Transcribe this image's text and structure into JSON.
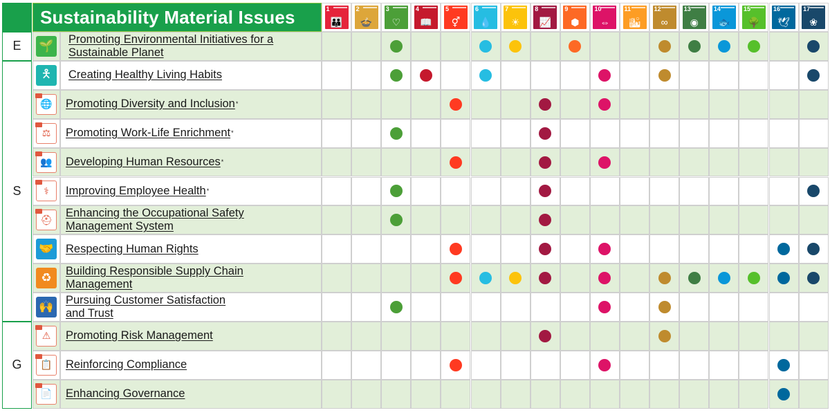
{
  "title": "Sustainability Material Issues",
  "sdgs": [
    {
      "num": "1",
      "icon": "family-icon",
      "glyph": "👪",
      "color": "#e5243b"
    },
    {
      "num": "2",
      "icon": "bowl-icon",
      "glyph": "🍲",
      "color": "#dda63a"
    },
    {
      "num": "3",
      "icon": "heartbeat-icon",
      "glyph": "♡",
      "color": "#4c9f38"
    },
    {
      "num": "4",
      "icon": "book-icon",
      "glyph": "📖",
      "color": "#c5192d"
    },
    {
      "num": "5",
      "icon": "gender-icon",
      "glyph": "⚥",
      "color": "#ff3a21"
    },
    {
      "num": "6",
      "icon": "water-drop-icon",
      "glyph": "💧",
      "color": "#26bde2"
    },
    {
      "num": "7",
      "icon": "sun-power-icon",
      "glyph": "☀",
      "color": "#fcc30b"
    },
    {
      "num": "8",
      "icon": "growth-chart-icon",
      "glyph": "📈",
      "color": "#a21942"
    },
    {
      "num": "9",
      "icon": "cubes-icon",
      "glyph": "⬢",
      "color": "#fd6925"
    },
    {
      "num": "10",
      "icon": "equality-icon",
      "glyph": "⇔",
      "color": "#dd1367"
    },
    {
      "num": "11",
      "icon": "city-icon",
      "glyph": "🏙",
      "color": "#fd9d24"
    },
    {
      "num": "12",
      "icon": "infinity-icon",
      "glyph": "∞",
      "color": "#bf8b2e"
    },
    {
      "num": "13",
      "icon": "eye-globe-icon",
      "glyph": "◉",
      "color": "#3f7e44"
    },
    {
      "num": "14",
      "icon": "fish-icon",
      "glyph": "🐟",
      "color": "#0a97d9"
    },
    {
      "num": "15",
      "icon": "tree-icon",
      "glyph": "🌳",
      "color": "#56c02b"
    },
    {
      "num": "16",
      "icon": "dove-icon",
      "glyph": "🕊",
      "color": "#00689d"
    },
    {
      "num": "17",
      "icon": "partnership-icon",
      "glyph": "❀",
      "color": "#19486a"
    }
  ],
  "groups": [
    {
      "letter": "E",
      "rows": 1
    },
    {
      "letter": "S",
      "rows": 9
    },
    {
      "letter": "G",
      "rows": 3
    }
  ],
  "rows": [
    {
      "label": "Promoting Environmental Initiatives for a Sustainable Planet",
      "lines": [
        "Promoting Environmental Initiatives for a",
        "Sustainable Planet"
      ],
      "asterisk": "",
      "icon": "seedling-icon",
      "icon_style": "solid",
      "icon_color": "#3cb44b",
      "glyph": "🌱",
      "shaded": true,
      "dots": [
        3,
        6,
        7,
        9,
        12,
        13,
        14,
        15,
        17
      ]
    },
    {
      "label": "Creating Healthy Living Habits",
      "lines": [
        "Creating Healthy Living Habits"
      ],
      "asterisk": "",
      "icon": "person-health-icon",
      "icon_style": "solid",
      "icon_color": "#1fb5b0",
      "glyph": "🯅",
      "shaded": false,
      "dots": [
        3,
        4,
        6,
        10,
        12,
        17
      ]
    },
    {
      "label": "Promoting Diversity and Inclusion",
      "lines": [
        "Promoting Diversity and Inclusion"
      ],
      "asterisk": "*",
      "icon": "globe-people-icon",
      "icon_style": "outline",
      "glyph": "🌐",
      "shaded": true,
      "dots": [
        5,
        8,
        10
      ]
    },
    {
      "label": "Promoting Work-Life Enrichment",
      "lines": [
        "Promoting Work-Life Enrichment"
      ],
      "asterisk": "*",
      "icon": "balance-scale-icon",
      "icon_style": "outline",
      "glyph": "⚖",
      "shaded": false,
      "dots": [
        3,
        8
      ]
    },
    {
      "label": "Developing Human Resources",
      "lines": [
        "Developing Human Resources"
      ],
      "asterisk": "*",
      "icon": "training-board-icon",
      "icon_style": "outline",
      "glyph": "👥",
      "shaded": true,
      "dots": [
        5,
        8,
        10
      ]
    },
    {
      "label": "Improving Employee Health",
      "lines": [
        "Improving Employee Health"
      ],
      "asterisk": "*",
      "icon": "stethoscope-icon",
      "icon_style": "outline",
      "glyph": "⚕",
      "shaded": false,
      "dots": [
        3,
        8,
        17
      ]
    },
    {
      "label": "Enhancing the Occupational Safety Management System",
      "lines": [
        "Enhancing the Occupational Safety",
        "Management  System"
      ],
      "asterisk": "",
      "icon": "hardhat-icon",
      "icon_style": "outline",
      "glyph": "⛑",
      "shaded": true,
      "dots": [
        3,
        8
      ]
    },
    {
      "label": "Respecting Human Rights",
      "lines": [
        "Respecting Human Rights"
      ],
      "asterisk": "",
      "icon": "handshake-icon",
      "icon_style": "solid",
      "icon_color": "#1d9bd7",
      "glyph": "🤝",
      "shaded": false,
      "dots": [
        5,
        8,
        10,
        16,
        17
      ]
    },
    {
      "label": "Building Responsible Supply Chain Management",
      "lines": [
        "Building Responsible Supply Chain",
        "Management"
      ],
      "asterisk": "",
      "icon": "recycle-cycle-icon",
      "icon_style": "solid",
      "icon_color": "#f18a1f",
      "glyph": "♻",
      "shaded": true,
      "dots": [
        5,
        6,
        7,
        8,
        10,
        12,
        13,
        14,
        15,
        16,
        17
      ]
    },
    {
      "label": "Pursuing Customer Satisfaction and Trust",
      "lines": [
        "Pursuing Customer Satisfaction",
        "and Trust"
      ],
      "asterisk": "",
      "icon": "customer-hands-icon",
      "icon_style": "solid",
      "icon_color": "#2b68b1",
      "glyph": "🙌",
      "shaded": false,
      "dots": [
        3,
        10,
        12
      ]
    },
    {
      "label": "Promoting Risk Management",
      "lines": [
        "Promoting Risk Management"
      ],
      "asterisk": "",
      "icon": "warning-triangle-icon",
      "icon_style": "outline",
      "glyph": "⚠",
      "shaded": true,
      "dots": [
        8,
        12
      ]
    },
    {
      "label": "Reinforcing Compliance",
      "lines": [
        "Reinforcing Compliance"
      ],
      "asterisk": "",
      "icon": "clipboard-icon",
      "icon_style": "outline",
      "glyph": "📋",
      "shaded": false,
      "dots": [
        5,
        10,
        16
      ]
    },
    {
      "label": "Enhancing Governance",
      "lines": [
        "Enhancing Governance"
      ],
      "asterisk": "",
      "icon": "document-icon",
      "icon_style": "outline",
      "glyph": "📄",
      "shaded": true,
      "dots": [
        16
      ]
    }
  ],
  "colors": {
    "header_green": "#19a04b",
    "row_shade": "#e2efd9",
    "border_green": "#8cc63f"
  }
}
